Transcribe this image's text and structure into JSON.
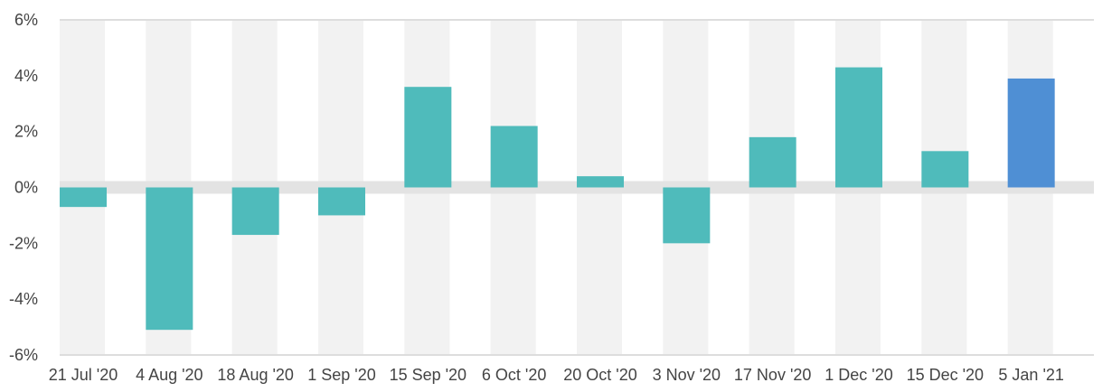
{
  "chart_data": {
    "type": "bar",
    "categories": [
      "21 Jul '20",
      "4 Aug '20",
      "18 Aug '20",
      "1 Sep '20",
      "15 Sep '20",
      "6 Oct '20",
      "20 Oct '20",
      "3 Nov '20",
      "17 Nov '20",
      "1 Dec '20",
      "15 Dec '20",
      "5 Jan '21"
    ],
    "values": [
      -0.7,
      -5.1,
      -1.7,
      -1.0,
      3.6,
      2.2,
      0.4,
      -2.0,
      1.8,
      4.3,
      1.3,
      3.9
    ],
    "ylim": [
      -6,
      6
    ],
    "yticks": [
      -6,
      -4,
      -2,
      0,
      2,
      4,
      6
    ],
    "ytick_labels": [
      "-6%",
      "-4%",
      "-2%",
      "0%",
      "2%",
      "4%",
      "6%"
    ],
    "grid": false,
    "alternating_bands": true,
    "colors": {
      "bar": "#4fbbbb",
      "highlight_bar": "#4f8fd4",
      "band": "#f2f2f2",
      "zero_band": "#e3e3e3",
      "axis": "#dddddd",
      "text": "#444444"
    },
    "highlight_index": 11
  }
}
